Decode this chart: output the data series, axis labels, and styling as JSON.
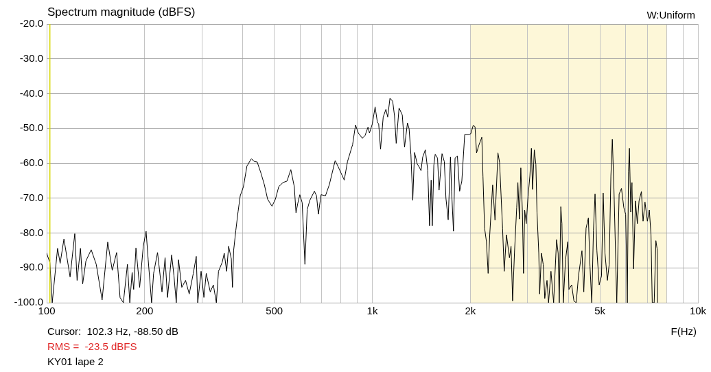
{
  "chart_data": {
    "type": "line",
    "title": "Spectrum magnitude (dBFS)",
    "subtitle": "W:Uniform",
    "xlabel": "F(Hz)",
    "annotations": [
      "Cursor:  102.3 Hz, -88.50 dB",
      "RMS =  -23.5 dBFS",
      "KY01 lape 2"
    ],
    "x": [
      100,
      102.3,
      104,
      108,
      110,
      113,
      118,
      122,
      124,
      127,
      129,
      132,
      137,
      142,
      148,
      154,
      159,
      164,
      168,
      172,
      177,
      180,
      183,
      185,
      188,
      193,
      198,
      202,
      205,
      210,
      213,
      219,
      226,
      231,
      235,
      242,
      246,
      250,
      254,
      260,
      267,
      274,
      282,
      288,
      291,
      298,
      304,
      309,
      318,
      325,
      332,
      337,
      346,
      351,
      357,
      362,
      369,
      372,
      375,
      381,
      387,
      393,
      402,
      412,
      425,
      435,
      443,
      455,
      466,
      477,
      492,
      504,
      516,
      532,
      547,
      562,
      576,
      583,
      590,
      599,
      609,
      621,
      631,
      643,
      664,
      674,
      683,
      696,
      718,
      738,
      769,
      784,
      820,
      839,
      870,
      888,
      906,
      932,
      950,
      970,
      980,
      1000,
      1020,
      1036,
      1046,
      1060,
      1080,
      1101,
      1115,
      1133,
      1155,
      1170,
      1184,
      1208,
      1236,
      1256,
      1282,
      1297,
      1314,
      1331,
      1348,
      1374,
      1396,
      1411,
      1428,
      1455,
      1480,
      1499,
      1516,
      1528,
      1545,
      1560,
      1586,
      1603,
      1637,
      1664,
      1683,
      1710,
      1738,
      1752,
      1775,
      1795,
      1825,
      1854,
      1883,
      1922,
      1980,
      2006,
      2041,
      2067,
      2090,
      2124,
      2169,
      2187,
      2212,
      2241,
      2268,
      2294,
      2342,
      2381,
      2431,
      2459,
      2512,
      2541,
      2582,
      2637,
      2667,
      2697,
      2732,
      2776,
      2799,
      2830,
      2858,
      2890,
      2913,
      2937,
      2969,
      3008,
      3047,
      3080,
      3105,
      3144,
      3179,
      3204,
      3245,
      3265,
      3307,
      3349,
      3385,
      3439,
      3477,
      3537,
      3604,
      3680,
      3721,
      3750,
      3792,
      3822,
      3858,
      3920,
      3983,
      4016,
      4094,
      4160,
      4228,
      4297,
      4403,
      4461,
      4533,
      4608,
      4661,
      4720,
      4776,
      4830,
      4894,
      4974,
      5056,
      5116,
      5182,
      5270,
      5339,
      5403,
      5458,
      5521,
      5632,
      5727,
      5823,
      5920,
      5998,
      6068,
      6119,
      6159,
      6219,
      6271,
      6343,
      6428,
      6514,
      6593,
      6704,
      6783,
      6876,
      6993,
      7090,
      7175,
      7238,
      7338,
      7426,
      7491,
      7517
    ],
    "series": [
      {
        "color": "#000000",
        "values": [
          -85.8,
          -88.5,
          -100,
          -84.4,
          -88.7,
          -81.7,
          -92.6,
          -80.2,
          -93.6,
          -84.4,
          -94.6,
          -88.0,
          -84.8,
          -89.0,
          -99.2,
          -82.6,
          -90.7,
          -85.6,
          -98.5,
          -100,
          -89.0,
          -100,
          -91.3,
          -96.2,
          -84.3,
          -95.6,
          -83.8,
          -79.5,
          -87.7,
          -100,
          -91.6,
          -85.6,
          -96.9,
          -87.1,
          -98.5,
          -86.3,
          -92.3,
          -100,
          -87.7,
          -95.6,
          -93.6,
          -97.5,
          -91.6,
          -86.7,
          -100,
          -91.0,
          -98.5,
          -91.6,
          -96.9,
          -94.9,
          -100,
          -91.0,
          -88.4,
          -85.8,
          -91.0,
          -83.8,
          -87.4,
          -95.6,
          -85.1,
          -79.2,
          -73.9,
          -69.3,
          -66.7,
          -60.8,
          -58.7,
          -59.5,
          -59.6,
          -62.8,
          -66.1,
          -70.3,
          -72.3,
          -70.3,
          -66.7,
          -65.5,
          -65.1,
          -61.8,
          -66.7,
          -74.2,
          -71.6,
          -69.0,
          -71.3,
          -89.0,
          -73.3,
          -70.6,
          -68.0,
          -69.3,
          -74.6,
          -69.0,
          -69.3,
          -66.1,
          -59.2,
          -60.8,
          -64.8,
          -59.5,
          -54.6,
          -49.0,
          -51.3,
          -52.8,
          -52.0,
          -49.6,
          -51.3,
          -48.7,
          -43.8,
          -48.1,
          -48.7,
          -55.9,
          -46.7,
          -44.5,
          -46.7,
          -41.3,
          -42.2,
          -46.4,
          -54.3,
          -44.1,
          -46.1,
          -55.3,
          -48.4,
          -50.0,
          -57.6,
          -70.6,
          -56.9,
          -60.2,
          -61.2,
          -62.1,
          -58.2,
          -56.1,
          -62.1,
          -77.9,
          -64.8,
          -77.9,
          -60.5,
          -57.4,
          -58.5,
          -67.7,
          -57.2,
          -59.5,
          -70.0,
          -76.2,
          -58.2,
          -68.0,
          -79.5,
          -58.5,
          -57.9,
          -68.0,
          -65.1,
          -51.7,
          -51.7,
          -51.5,
          -49.1,
          -49.5,
          -57.0,
          -54.8,
          -52.5,
          -63.9,
          -78.6,
          -82.5,
          -91.6,
          -80.5,
          -66.2,
          -76.3,
          -57.0,
          -59.7,
          -78.6,
          -91.0,
          -80.5,
          -87.1,
          -83.8,
          -99.5,
          -85.8,
          -72.7,
          -65.5,
          -76.0,
          -61.3,
          -74.0,
          -91.6,
          -73.4,
          -77.3,
          -69.5,
          -63.6,
          -55.7,
          -67.5,
          -56.1,
          -60.3,
          -74.0,
          -85.8,
          -97.5,
          -85.8,
          -89.1,
          -98.8,
          -93.6,
          -100,
          -91.0,
          -100,
          -81.9,
          -85.8,
          -100,
          -72.4,
          -77.3,
          -100,
          -87.7,
          -82.5,
          -96.2,
          -94.9,
          -99.5,
          -100,
          -92.3,
          -85.1,
          -96.9,
          -78.6,
          -75.7,
          -89.7,
          -100,
          -79.2,
          -68.8,
          -85.1,
          -94.9,
          -92.3,
          -68.5,
          -85.8,
          -93.6,
          -89.0,
          -63.6,
          -53.1,
          -67.5,
          -100,
          -68.8,
          -67.2,
          -72.7,
          -74.7,
          -100,
          -62.3,
          -55.7,
          -74.0,
          -65.5,
          -90.3,
          -70.8,
          -77.3,
          -70.8,
          -68.1,
          -76.6,
          -71.1,
          -76.6,
          -73.4,
          -80.5,
          -100,
          -100,
          -82.2,
          -84.5,
          -100
        ]
      }
    ],
    "xlim": [
      100,
      10000
    ],
    "log": "x",
    "xticks": [
      {
        "value": 100,
        "label": "100"
      },
      {
        "value": 200,
        "label": "200"
      },
      {
        "value": 300,
        "label": null
      },
      {
        "value": 400,
        "label": null
      },
      {
        "value": 500,
        "label": "500"
      },
      {
        "value": 600,
        "label": null
      },
      {
        "value": 700,
        "label": null
      },
      {
        "value": 800,
        "label": null
      },
      {
        "value": 900,
        "label": null
      },
      {
        "value": 1000,
        "label": "1k"
      },
      {
        "value": 2000,
        "label": "2k"
      },
      {
        "value": 3000,
        "label": null
      },
      {
        "value": 4000,
        "label": null
      },
      {
        "value": 5000,
        "label": "5k"
      },
      {
        "value": 6000,
        "label": null
      },
      {
        "value": 7000,
        "label": null
      },
      {
        "value": 8000,
        "label": null
      },
      {
        "value": 9000,
        "label": null
      },
      {
        "value": 10000,
        "label": "10k"
      }
    ],
    "ylim": [
      -100,
      -20
    ],
    "yticks": [
      {
        "value": -100,
        "label": "-100.0"
      },
      {
        "value": -90,
        "label": "-90.0"
      },
      {
        "value": -80,
        "label": "-80.0"
      },
      {
        "value": -70,
        "label": "-70.0"
      },
      {
        "value": -60,
        "label": "-60.0"
      },
      {
        "value": -50,
        "label": "-50.0"
      },
      {
        "value": -40,
        "label": "-40.0"
      },
      {
        "value": -30,
        "label": "-30.0"
      },
      {
        "value": -20,
        "label": "-20.0"
      }
    ],
    "bands": [
      {
        "axis": "x",
        "from": 2000,
        "to": 8000,
        "color": "#fdf7d8"
      }
    ],
    "ref_lines": [
      {
        "axis": "x",
        "value": 102.3,
        "color": "#d6d600"
      }
    ],
    "grid": true,
    "marker": "none",
    "line_style": "solid"
  }
}
